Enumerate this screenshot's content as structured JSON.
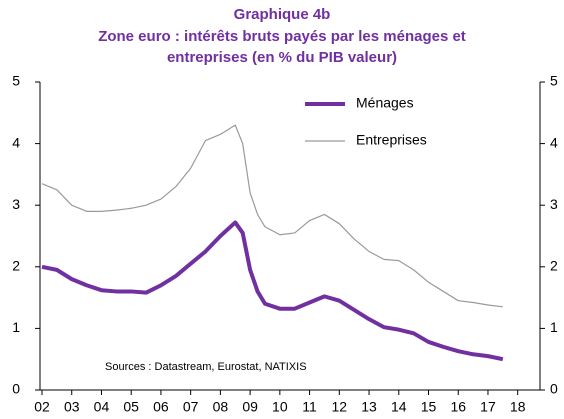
{
  "chart_data": {
    "type": "line",
    "title": [
      "Graphique 4b",
      "Zone euro : intérêts bruts payés par les ménages et",
      "entreprises (en % du PIB valeur)"
    ],
    "annotation": "Sources : Datastream, Eurostat, NATIXIS",
    "x": [
      2002,
      2002.5,
      2003,
      2003.5,
      2004,
      2004.5,
      2005,
      2005.5,
      2006,
      2006.5,
      2007,
      2007.5,
      2008,
      2008.5,
      2008.75,
      2009,
      2009.25,
      2009.5,
      2010,
      2010.5,
      2011,
      2011.5,
      2012,
      2012.5,
      2013,
      2013.5,
      2014,
      2014.5,
      2015,
      2015.5,
      2016,
      2016.5,
      2017,
      2017.5
    ],
    "series": [
      {
        "name": "Ménages",
        "color": "#7030a0",
        "width": 4,
        "values": [
          2.0,
          1.95,
          1.8,
          1.7,
          1.62,
          1.6,
          1.6,
          1.58,
          1.7,
          1.85,
          2.05,
          2.25,
          2.5,
          2.72,
          2.55,
          1.95,
          1.6,
          1.4,
          1.32,
          1.32,
          1.42,
          1.52,
          1.45,
          1.3,
          1.15,
          1.02,
          0.98,
          0.92,
          0.78,
          0.7,
          0.63,
          0.58,
          0.55,
          0.5
        ]
      },
      {
        "name": "Entreprises",
        "color": "#9a9a9a",
        "width": 1.2,
        "values": [
          3.35,
          3.25,
          3.0,
          2.9,
          2.9,
          2.92,
          2.95,
          3.0,
          3.1,
          3.3,
          3.6,
          4.05,
          4.15,
          4.3,
          4.0,
          3.2,
          2.85,
          2.65,
          2.52,
          2.55,
          2.75,
          2.85,
          2.7,
          2.45,
          2.25,
          2.12,
          2.1,
          1.95,
          1.75,
          1.6,
          1.45,
          1.42,
          1.38,
          1.35
        ]
      }
    ],
    "xlim": [
      2002,
      2018.75
    ],
    "xticks": [
      {
        "value": 2002,
        "label": "02"
      },
      {
        "value": 2003,
        "label": "03"
      },
      {
        "value": 2004,
        "label": "04"
      },
      {
        "value": 2005,
        "label": "05"
      },
      {
        "value": 2006,
        "label": "06"
      },
      {
        "value": 2007,
        "label": "07"
      },
      {
        "value": 2008,
        "label": "08"
      },
      {
        "value": 2009,
        "label": "09"
      },
      {
        "value": 2010,
        "label": "10"
      },
      {
        "value": 2011,
        "label": "11"
      },
      {
        "value": 2012,
        "label": "12"
      },
      {
        "value": 2013,
        "label": "13"
      },
      {
        "value": 2014,
        "label": "14"
      },
      {
        "value": 2015,
        "label": "15"
      },
      {
        "value": 2016,
        "label": "16"
      },
      {
        "value": 2017,
        "label": "17"
      },
      {
        "value": 2018,
        "label": "18"
      }
    ],
    "ylim": [
      0,
      5
    ],
    "yticks": [
      0,
      1,
      2,
      3,
      4,
      5
    ],
    "y2lim": [
      0,
      5
    ],
    "y2ticks": [
      0,
      1,
      2,
      3,
      4,
      5
    ],
    "legend": "upper right",
    "grid": false
  }
}
